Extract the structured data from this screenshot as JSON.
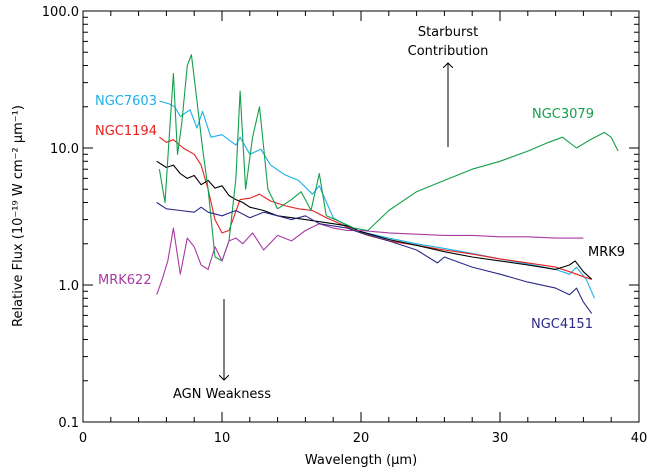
{
  "chart_data": {
    "type": "line",
    "title": "",
    "xlabel": "Wavelength (μm)",
    "ylabel": "Relative Flux (10⁻¹⁹ W cm⁻² μm⁻¹)",
    "xlim": [
      0,
      40
    ],
    "ylim": [
      0.1,
      100
    ],
    "yscale": "log",
    "grid": false,
    "x_ticks": [
      "0",
      "10",
      "20",
      "30",
      "40"
    ],
    "y_ticks": [
      "0.1",
      "1.0",
      "10.0",
      "100.0"
    ],
    "series": [
      {
        "name": "NGC7603",
        "color": "#1cb0e6",
        "x": [
          5.5,
          6.2,
          6.6,
          7.0,
          7.7,
          8.2,
          8.6,
          9.2,
          10.0,
          11.0,
          11.3,
          12.0,
          12.8,
          13.5,
          14.5,
          15.5,
          16.5,
          17.0,
          18.0,
          19.0,
          20.0,
          22.0,
          24.0,
          26.0,
          28.0,
          30.0,
          32.0,
          34.0,
          35.0,
          35.5,
          36.2,
          36.8
        ],
        "y": [
          22,
          21,
          20,
          17,
          19,
          14,
          18.5,
          12,
          12.5,
          10.5,
          12,
          9,
          9.8,
          7.5,
          6.4,
          5.8,
          4.6,
          5.3,
          3.1,
          2.7,
          2.45,
          2.2,
          2.0,
          1.85,
          1.7,
          1.55,
          1.42,
          1.3,
          1.2,
          1.35,
          1.1,
          0.8
        ]
      },
      {
        "name": "NGC1194",
        "color": "#e8211f",
        "x": [
          5.5,
          6.0,
          6.5,
          7.2,
          8.0,
          8.5,
          9.0,
          9.5,
          10.0,
          10.5,
          11.3,
          12.0,
          12.7,
          13.5,
          14.5,
          15.5,
          16.5,
          17.5,
          18.5,
          19.5,
          20.5,
          22.0,
          24.0,
          26.0,
          28.0,
          30.0,
          32.0,
          34.0,
          35.0,
          36.0,
          36.6
        ],
        "y": [
          12,
          11,
          11.5,
          10,
          9,
          7.5,
          5,
          3,
          2.4,
          2.5,
          4.2,
          4.3,
          4.6,
          4.1,
          3.8,
          3.6,
          3.5,
          3.1,
          2.8,
          2.5,
          2.3,
          2.1,
          1.95,
          1.8,
          1.68,
          1.55,
          1.45,
          1.35,
          1.25,
          1.15,
          1.1
        ]
      },
      {
        "name": "",
        "color": "#000000",
        "x": [
          5.3,
          6.0,
          6.5,
          7.0,
          7.5,
          8.0,
          8.5,
          9.0,
          9.5,
          10.0,
          10.5,
          11.0,
          11.5,
          12.0,
          13.0,
          14.0,
          15.0,
          16.0,
          17.0,
          18.0,
          19.0,
          20.0,
          22.0,
          24.0,
          26.0,
          28.0,
          30.0,
          32.0,
          34.0,
          35.0,
          35.4,
          36.0,
          36.6
        ],
        "y": [
          8,
          7.2,
          7.5,
          6.5,
          6,
          6.3,
          5.4,
          5.8,
          5.1,
          5.3,
          4.5,
          4.2,
          4.0,
          3.7,
          3.5,
          3.2,
          3.1,
          3.0,
          2.9,
          2.8,
          2.7,
          2.45,
          2.15,
          1.95,
          1.75,
          1.6,
          1.5,
          1.4,
          1.3,
          1.4,
          1.5,
          1.25,
          1.1
        ]
      },
      {
        "name": "NGC3079",
        "color": "#139f4b",
        "x": [
          5.5,
          5.9,
          6.2,
          6.5,
          6.8,
          7.1,
          7.5,
          7.8,
          8.2,
          8.6,
          9.0,
          9.5,
          10.0,
          10.5,
          11.0,
          11.3,
          11.7,
          12.2,
          12.7,
          13.3,
          14.0,
          15.0,
          15.7,
          16.4,
          17.0,
          17.5,
          18.5,
          19.5,
          20.5,
          22.0,
          24.0,
          26.0,
          28.0,
          30.0,
          32.0,
          33.5,
          34.5,
          35.5,
          36.5,
          37.5,
          38.0,
          38.5
        ],
        "y": [
          7,
          4,
          12,
          35,
          9,
          15,
          40,
          48,
          22,
          10,
          5,
          1.6,
          1.5,
          2.1,
          6,
          26,
          5,
          12,
          20,
          5,
          3.6,
          4.2,
          4.8,
          3.5,
          6.5,
          3.2,
          2.9,
          2.6,
          2.5,
          3.5,
          4.8,
          5.8,
          7.0,
          8.0,
          9.5,
          11,
          12,
          10,
          11.5,
          13,
          12,
          9.5
        ]
      },
      {
        "name": "MRK622",
        "color": "#a83aa3",
        "x": [
          5.3,
          5.7,
          6.1,
          6.5,
          7.0,
          7.5,
          8.0,
          8.5,
          9.0,
          9.5,
          10.0,
          10.5,
          11.0,
          11.5,
          12.2,
          13.0,
          14.0,
          15.0,
          16.0,
          17.0,
          18.0,
          19.0,
          20.0,
          22.0,
          24.0,
          26.0,
          28.0,
          30.0,
          32.0,
          34.0,
          35.0,
          36.0
        ],
        "y": [
          0.85,
          1.1,
          1.5,
          2.6,
          1.2,
          2.2,
          1.9,
          1.4,
          1.3,
          1.9,
          1.5,
          2.1,
          2.2,
          2.0,
          2.4,
          1.8,
          2.3,
          2.1,
          2.5,
          2.8,
          2.6,
          2.5,
          2.5,
          2.4,
          2.35,
          2.3,
          2.3,
          2.25,
          2.25,
          2.2,
          2.2,
          2.2
        ]
      },
      {
        "name": "NGC4151",
        "color": "#2d2a86",
        "x": [
          5.3,
          6.0,
          7.0,
          8.0,
          8.5,
          9.0,
          10.0,
          11.0,
          12.0,
          13.0,
          14.0,
          15.0,
          16.0,
          17.0,
          18.0,
          19.0,
          20.0,
          22.0,
          24.0,
          25.5,
          26.0,
          28.0,
          30.0,
          32.0,
          34.0,
          35.0,
          35.5,
          36.0,
          36.6
        ],
        "y": [
          4,
          3.6,
          3.5,
          3.4,
          3.7,
          3.4,
          3.2,
          3.5,
          3.1,
          3.4,
          3.2,
          3.0,
          3.2,
          2.8,
          2.7,
          2.6,
          2.4,
          2.1,
          1.8,
          1.45,
          1.6,
          1.35,
          1.2,
          1.05,
          0.95,
          0.85,
          0.95,
          0.75,
          0.62
        ]
      }
    ],
    "labels": [
      {
        "text": "NGC7603",
        "color": "#1cb0e6"
      },
      {
        "text": "NGC1194",
        "color": "#e8211f"
      },
      {
        "text": "NGC3079",
        "color": "#139f4b"
      },
      {
        "text": "MRK622",
        "color": "#a83aa3"
      },
      {
        "text": "MRK9",
        "color": "#000000"
      },
      {
        "text": "NGC4151",
        "color": "#2d2a86"
      }
    ],
    "annotations": [
      {
        "text": "Starburst",
        "direction": "up"
      },
      {
        "text": "Contribution",
        "direction": "up"
      },
      {
        "text": "AGN Weakness",
        "direction": "down"
      }
    ]
  }
}
